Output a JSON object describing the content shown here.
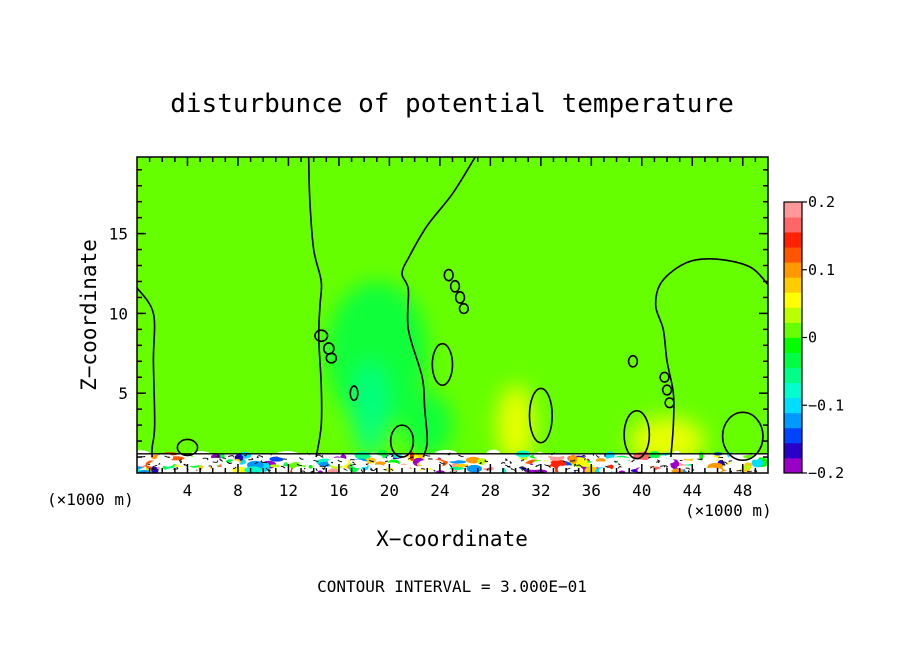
{
  "chart_data": {
    "type": "heatmap",
    "title": "disturbunce of potential temperature",
    "xlabel": "X−coordinate",
    "ylabel": "Z−coordinate",
    "x_unit_left": "(×1000 m)",
    "x_unit_right": "(×1000 m)",
    "footer": "CONTOUR INTERVAL = 3.000E−01",
    "xlim": [
      0,
      50
    ],
    "ylim": [
      0,
      19.8
    ],
    "x_ticks": [
      4,
      8,
      12,
      16,
      20,
      24,
      28,
      32,
      36,
      40,
      44,
      48
    ],
    "x_tick_labels": [
      "4",
      "8",
      "12",
      "16",
      "20",
      "24",
      "28",
      "32",
      "36",
      "40",
      "44",
      "48"
    ],
    "y_ticks": [
      5,
      10,
      15
    ],
    "y_tick_labels": [
      "5",
      "10",
      "15"
    ],
    "colorbar": {
      "range": [
        -0.2,
        0.2
      ],
      "ticks": [
        0.2,
        0.1,
        0,
        -0.1,
        -0.2
      ],
      "tick_labels": [
        "0.2",
        "0.1",
        "0",
        "−0.1",
        "−0.2"
      ],
      "colors": [
        "#9a00c8",
        "#2a00c8",
        "#0044ff",
        "#0099ff",
        "#00ddff",
        "#00ffcc",
        "#00ff88",
        "#00ff44",
        "#00ff00",
        "#66ff00",
        "#bbff00",
        "#ffff00",
        "#ffcc00",
        "#ff9900",
        "#ff5500",
        "#ff2200",
        "#ff6666",
        "#ff9999"
      ]
    },
    "background_value": 0.02,
    "anomalies": [
      {
        "x": 19,
        "z": 7.5,
        "rx": 4,
        "rz": 4.5,
        "value": -0.03
      },
      {
        "x": 18.5,
        "z": 4,
        "rx": 1.5,
        "rz": 3,
        "value": -0.06
      },
      {
        "x": 23,
        "z": 3,
        "rx": 2,
        "rz": 2,
        "value": -0.04
      },
      {
        "x": 30,
        "z": 3,
        "rx": 1.5,
        "rz": 2.5,
        "value": 0.05
      },
      {
        "x": 42,
        "z": 2,
        "rx": 3,
        "rz": 1.5,
        "value": 0.05
      }
    ],
    "contours": [
      [
        [
          0,
          11.6
        ],
        [
          1.3,
          10
        ],
        [
          1.3,
          7
        ],
        [
          1.4,
          3
        ],
        [
          1.2,
          1.6
        ],
        [
          1.2,
          1.0
        ]
      ],
      [
        [
          13.6,
          19.8
        ],
        [
          13.7,
          17
        ],
        [
          14,
          14
        ],
        [
          14.6,
          12
        ],
        [
          14.5,
          10.5
        ],
        [
          14.4,
          8.5
        ],
        [
          14.6,
          5.5
        ],
        [
          14.6,
          3.0
        ],
        [
          14.2,
          1.0
        ]
      ],
      [
        [
          26.8,
          19.8
        ],
        [
          25,
          17.5
        ],
        [
          23,
          15.5
        ],
        [
          21.6,
          13.6
        ],
        [
          21,
          12.5
        ],
        [
          21.5,
          11.5
        ],
        [
          21.5,
          9
        ],
        [
          22.6,
          6
        ],
        [
          22.8,
          4
        ],
        [
          23,
          2
        ],
        [
          22.7,
          1.0
        ]
      ],
      [
        [
          50,
          11.8
        ],
        [
          48.6,
          12.9
        ],
        [
          46,
          13.4
        ],
        [
          43.6,
          13.2
        ],
        [
          41.6,
          12
        ],
        [
          41.1,
          10.5
        ],
        [
          41.7,
          9
        ],
        [
          42,
          7
        ],
        [
          42.5,
          5
        ],
        [
          42.5,
          3
        ],
        [
          42.3,
          1.0
        ]
      ]
    ],
    "closed_contours": [
      {
        "cx": 14.6,
        "cz": 8.6,
        "rx": 0.5,
        "rz": 0.35
      },
      {
        "cx": 15.2,
        "cz": 7.8,
        "rx": 0.4,
        "rz": 0.35
      },
      {
        "cx": 15.4,
        "cz": 7.2,
        "rx": 0.4,
        "rz": 0.3
      },
      {
        "cx": 17.2,
        "cz": 5.0,
        "rx": 0.3,
        "rz": 0.45
      },
      {
        "cx": 24.7,
        "cz": 12.4,
        "rx": 0.35,
        "rz": 0.35
      },
      {
        "cx": 25.2,
        "cz": 11.7,
        "rx": 0.35,
        "rz": 0.35
      },
      {
        "cx": 25.6,
        "cz": 11.0,
        "rx": 0.35,
        "rz": 0.35
      },
      {
        "cx": 25.9,
        "cz": 10.3,
        "rx": 0.35,
        "rz": 0.3
      },
      {
        "cx": 24.2,
        "cz": 6.8,
        "rx": 0.8,
        "rz": 1.3
      },
      {
        "cx": 32,
        "cz": 3.6,
        "rx": 0.9,
        "rz": 1.7
      },
      {
        "cx": 39.3,
        "cz": 7.0,
        "rx": 0.35,
        "rz": 0.35
      },
      {
        "cx": 41.8,
        "cz": 6.0,
        "rx": 0.35,
        "rz": 0.3
      },
      {
        "cx": 42.0,
        "cz": 5.2,
        "rx": 0.35,
        "rz": 0.3
      },
      {
        "cx": 42.2,
        "cz": 4.4,
        "rx": 0.35,
        "rz": 0.3
      },
      {
        "cx": 39.6,
        "cz": 2.4,
        "rx": 1.0,
        "rz": 1.5
      },
      {
        "cx": 4.0,
        "cz": 1.6,
        "rx": 0.8,
        "rz": 0.5
      },
      {
        "cx": 21.0,
        "cz": 2.0,
        "rx": 0.9,
        "rz": 1.0
      },
      {
        "cx": 48.0,
        "cz": 2.3,
        "rx": 1.6,
        "rz": 1.5
      }
    ],
    "surface_layer": {
      "z_top": 1.2,
      "note": "turbulent near-surface band"
    }
  }
}
